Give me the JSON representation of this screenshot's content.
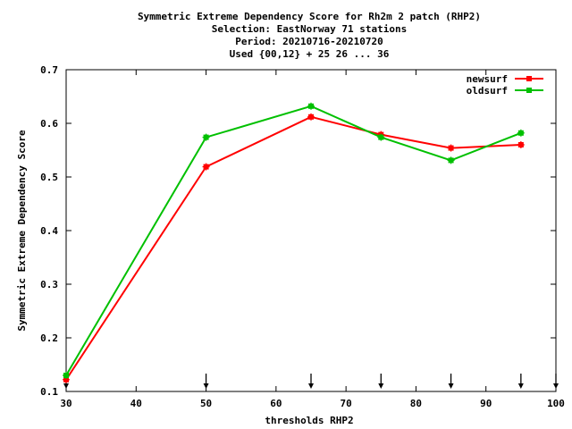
{
  "chart_data": {
    "type": "line",
    "title_lines": [
      "Symmetric Extreme Dependency Score  for Rh2m 2 patch (RHP2)",
      "Selection: EastNorway     71 stations",
      "Period: 20210716-20210720",
      "Used {00,12} + 25 26 ... 36"
    ],
    "xlabel": "thresholds RHP2",
    "ylabel": "Symmetric Extreme Dependency Score",
    "xlim": [
      30,
      100
    ],
    "ylim": [
      0.1,
      0.7
    ],
    "xticks": [
      30,
      40,
      50,
      60,
      70,
      80,
      90,
      100
    ],
    "xtick_labels": [
      "30",
      "40",
      "50",
      "60",
      "70",
      "80",
      "90",
      "100"
    ],
    "yticks": [
      0.1,
      0.2,
      0.3,
      0.4,
      0.5,
      0.6,
      0.7
    ],
    "ytick_labels": [
      "0.1",
      "0.2",
      "0.3",
      "0.4",
      "0.5",
      "0.6",
      "0.7"
    ],
    "grid": false,
    "legend_position": "top-right",
    "threshold_markers": [
      30,
      50,
      65,
      75,
      85,
      95,
      100
    ],
    "series": [
      {
        "name": "newsurf",
        "color": "#ff0000",
        "x": [
          30,
          50,
          65,
          75,
          85,
          95
        ],
        "y": [
          0.122,
          0.519,
          0.612,
          0.579,
          0.554,
          0.56
        ]
      },
      {
        "name": "oldsurf",
        "color": "#00c000",
        "x": [
          30,
          50,
          65,
          75,
          85,
          95
        ],
        "y": [
          0.13,
          0.574,
          0.632,
          0.574,
          0.531,
          0.582
        ]
      }
    ]
  }
}
